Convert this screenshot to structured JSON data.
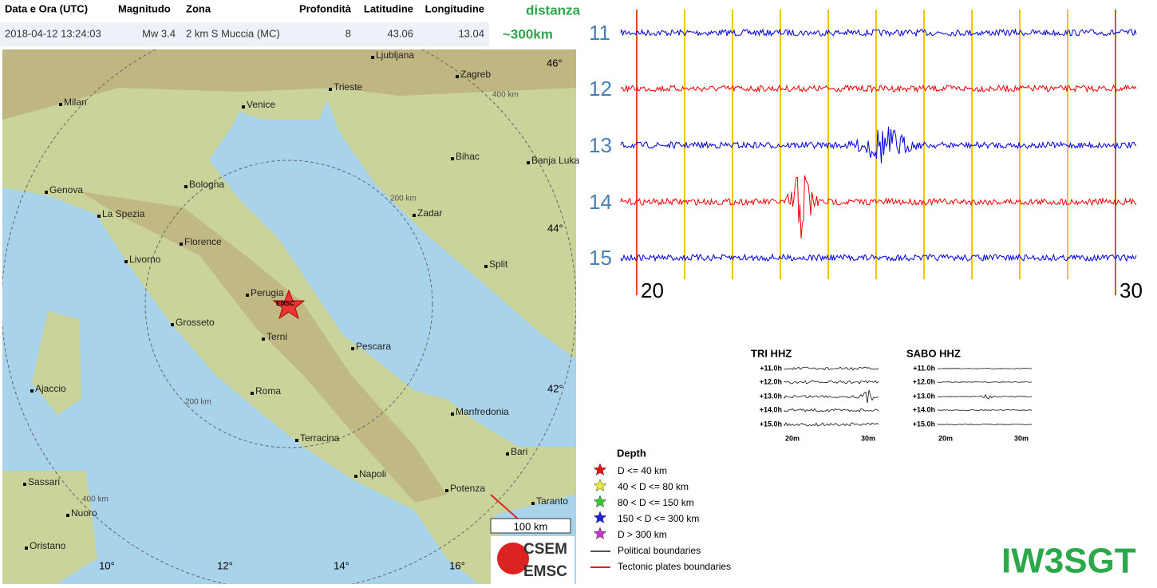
{
  "table": {
    "headers": [
      "Data e Ora (UTC)",
      "Magnitudo",
      "Zona",
      "Profondità",
      "Latitudine",
      "Longitudine"
    ],
    "row": [
      "2018-04-12 13:24:03",
      "Mw 3.4",
      "2 km S Muccia (MC)",
      "8",
      "43.06",
      "13.04"
    ]
  },
  "distance_note": [
    "distanza",
    "~300km"
  ],
  "map": {
    "cities": [
      "Ljubljana",
      "Zagreb",
      "Milan",
      "Venice",
      "Trieste",
      "Bihac",
      "Banja Luka",
      "Genova",
      "Bologna",
      "La Spezia",
      "Zadar",
      "Florence",
      "Livorno",
      "Split",
      "Perugia",
      "Grosseto",
      "Terni",
      "Pescara",
      "Ajaccio",
      "Roma",
      "Manfredonia",
      "Terracina",
      "Bari",
      "Sassari",
      "Napoli",
      "Potenza",
      "Taranto",
      "Nuoro",
      "Oristano"
    ],
    "lat_labels": [
      "46°",
      "44°",
      "42°"
    ],
    "lon_labels": [
      "10°",
      "12°",
      "14°",
      "16°"
    ],
    "ring_labels": [
      "400 km",
      "200 km",
      "200 km",
      "400 km"
    ],
    "epicenter": "EMSC",
    "scale": "100 km",
    "logo": [
      "CSEM",
      "EMSC"
    ]
  },
  "seismogram": {
    "hours": [
      "11",
      "12",
      "13",
      "14",
      "15"
    ],
    "minutes": [
      "20",
      "30"
    ]
  },
  "insets": [
    {
      "title": "TRI HHZ",
      "hours": [
        "+11.0h",
        "+12.0h",
        "+13.0h",
        "+14.0h",
        "+15.0h"
      ],
      "minutes": [
        "20m",
        "30m"
      ]
    },
    {
      "title": "SABO HHZ",
      "hours": [
        "+11.0h",
        "+12.0h",
        "+13.0h",
        "+14.0h",
        "+15.0h"
      ],
      "minutes": [
        "20m",
        "30m"
      ]
    }
  ],
  "legend": {
    "title": "Depth",
    "items": [
      "D <= 40 km",
      "40 < D <= 80 km",
      "80 < D <= 150 km",
      "150 < D <= 300 km",
      "D > 300 km",
      "Political boundaries",
      "Tectonic plates boundaries"
    ]
  },
  "signature": "IW3SGT"
}
